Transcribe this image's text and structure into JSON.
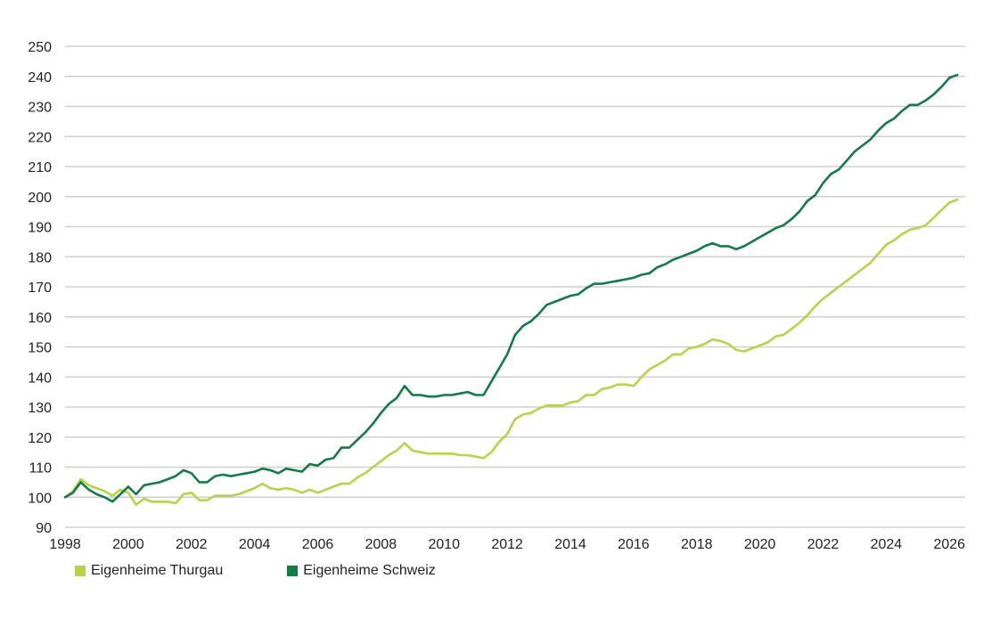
{
  "chart_data": {
    "type": "line",
    "title": "",
    "xlabel": "",
    "ylabel": "",
    "xlim": [
      1998,
      2026.5
    ],
    "ylim": [
      90,
      250
    ],
    "x_ticks": [
      "1998",
      "2000",
      "2002",
      "2004",
      "2006",
      "2008",
      "2010",
      "2012",
      "2014",
      "2016",
      "2018",
      "2020",
      "2022",
      "2024",
      "2026"
    ],
    "y_ticks": [
      "90",
      "100",
      "110",
      "120",
      "130",
      "140",
      "150",
      "160",
      "170",
      "180",
      "190",
      "200",
      "210",
      "220",
      "230",
      "240",
      "250"
    ],
    "grid": "horizontal",
    "legend": "bottom-left",
    "series": [
      {
        "name": "Eigenheime Thurgau",
        "color": "#b5d34b",
        "points": [
          [
            1998.0,
            100
          ],
          [
            1998.25,
            102
          ],
          [
            1998.5,
            106
          ],
          [
            1998.75,
            104
          ],
          [
            1999.0,
            103
          ],
          [
            1999.25,
            102
          ],
          [
            1999.5,
            100.5
          ],
          [
            1999.75,
            102.5
          ],
          [
            2000.0,
            101.5
          ],
          [
            2000.25,
            97.5
          ],
          [
            2000.5,
            99.5
          ],
          [
            2000.75,
            98.5
          ],
          [
            2001.0,
            98.5
          ],
          [
            2001.25,
            98.5
          ],
          [
            2001.5,
            98
          ],
          [
            2001.75,
            101
          ],
          [
            2002.0,
            101.5
          ],
          [
            2002.25,
            99
          ],
          [
            2002.5,
            99
          ],
          [
            2002.75,
            100.5
          ],
          [
            2003.0,
            100.5
          ],
          [
            2003.25,
            100.5
          ],
          [
            2003.5,
            101
          ],
          [
            2003.75,
            102
          ],
          [
            2004.0,
            103
          ],
          [
            2004.25,
            104.5
          ],
          [
            2004.5,
            103
          ],
          [
            2004.75,
            102.5
          ],
          [
            2005.0,
            103
          ],
          [
            2005.25,
            102.5
          ],
          [
            2005.5,
            101.5
          ],
          [
            2005.75,
            102.5
          ],
          [
            2006.0,
            101.5
          ],
          [
            2006.25,
            102.5
          ],
          [
            2006.5,
            103.5
          ],
          [
            2006.75,
            104.5
          ],
          [
            2007.0,
            104.5
          ],
          [
            2007.25,
            106.5
          ],
          [
            2007.5,
            108
          ],
          [
            2007.75,
            110
          ],
          [
            2008.0,
            112
          ],
          [
            2008.25,
            114
          ],
          [
            2008.5,
            115.5
          ],
          [
            2008.75,
            118
          ],
          [
            2009.0,
            115.5
          ],
          [
            2009.25,
            115
          ],
          [
            2009.5,
            114.5
          ],
          [
            2009.75,
            114.5
          ],
          [
            2010.0,
            114.5
          ],
          [
            2010.25,
            114.5
          ],
          [
            2010.5,
            114
          ],
          [
            2010.75,
            114
          ],
          [
            2011.0,
            113.5
          ],
          [
            2011.25,
            113
          ],
          [
            2011.5,
            115
          ],
          [
            2011.75,
            118.5
          ],
          [
            2012.0,
            121
          ],
          [
            2012.25,
            126
          ],
          [
            2012.5,
            127.5
          ],
          [
            2012.75,
            128
          ],
          [
            2013.0,
            129.5
          ],
          [
            2013.25,
            130.5
          ],
          [
            2013.5,
            130.5
          ],
          [
            2013.75,
            130.5
          ],
          [
            2014.0,
            131.5
          ],
          [
            2014.25,
            132
          ],
          [
            2014.5,
            134
          ],
          [
            2014.75,
            134
          ],
          [
            2015.0,
            136
          ],
          [
            2015.25,
            136.5
          ],
          [
            2015.5,
            137.5
          ],
          [
            2015.75,
            137.5
          ],
          [
            2016.0,
            137
          ],
          [
            2016.25,
            140
          ],
          [
            2016.5,
            142.5
          ],
          [
            2016.75,
            144
          ],
          [
            2017.0,
            145.5
          ],
          [
            2017.25,
            147.5
          ],
          [
            2017.5,
            147.5
          ],
          [
            2017.75,
            149.5
          ],
          [
            2018.0,
            150
          ],
          [
            2018.25,
            151
          ],
          [
            2018.5,
            152.5
          ],
          [
            2018.75,
            152
          ],
          [
            2019.0,
            151
          ],
          [
            2019.25,
            149
          ],
          [
            2019.5,
            148.5
          ],
          [
            2019.75,
            149.5
          ],
          [
            2020.0,
            150.5
          ],
          [
            2020.25,
            151.5
          ],
          [
            2020.5,
            153.5
          ],
          [
            2020.75,
            154
          ],
          [
            2021.0,
            156
          ],
          [
            2021.25,
            158
          ],
          [
            2021.5,
            160.5
          ],
          [
            2021.75,
            163.5
          ],
          [
            2022.0,
            166
          ],
          [
            2022.25,
            168
          ],
          [
            2022.5,
            170
          ],
          [
            2022.75,
            172
          ],
          [
            2023.0,
            174
          ],
          [
            2023.25,
            176
          ],
          [
            2023.5,
            178
          ],
          [
            2023.75,
            181
          ],
          [
            2024.0,
            184
          ],
          [
            2024.25,
            185.5
          ],
          [
            2024.5,
            187.5
          ],
          [
            2024.75,
            189
          ],
          [
            2025.0,
            189.5
          ],
          [
            2025.25,
            190.5
          ],
          [
            2025.5,
            193
          ],
          [
            2025.75,
            195.5
          ],
          [
            2026.0,
            198
          ],
          [
            2026.25,
            199
          ]
        ]
      },
      {
        "name": "Eigenheime Schweiz",
        "color": "#137a48",
        "points": [
          [
            1998.0,
            100
          ],
          [
            1998.25,
            101.5
          ],
          [
            1998.5,
            105
          ],
          [
            1998.75,
            102.5
          ],
          [
            1999.0,
            101
          ],
          [
            1999.25,
            100
          ],
          [
            1999.5,
            98.5
          ],
          [
            1999.75,
            101
          ],
          [
            2000.0,
            103.5
          ],
          [
            2000.25,
            101
          ],
          [
            2000.5,
            104
          ],
          [
            2000.75,
            104.5
          ],
          [
            2001.0,
            105
          ],
          [
            2001.25,
            106
          ],
          [
            2001.5,
            107
          ],
          [
            2001.75,
            109
          ],
          [
            2002.0,
            108
          ],
          [
            2002.25,
            105
          ],
          [
            2002.5,
            105
          ],
          [
            2002.75,
            107
          ],
          [
            2003.0,
            107.5
          ],
          [
            2003.25,
            107
          ],
          [
            2003.5,
            107.5
          ],
          [
            2003.75,
            108
          ],
          [
            2004.0,
            108.5
          ],
          [
            2004.25,
            109.5
          ],
          [
            2004.5,
            109
          ],
          [
            2004.75,
            108
          ],
          [
            2005.0,
            109.5
          ],
          [
            2005.25,
            109
          ],
          [
            2005.5,
            108.5
          ],
          [
            2005.75,
            111
          ],
          [
            2006.0,
            110.5
          ],
          [
            2006.25,
            112.5
          ],
          [
            2006.5,
            113
          ],
          [
            2006.75,
            116.5
          ],
          [
            2007.0,
            116.5
          ],
          [
            2007.25,
            119
          ],
          [
            2007.5,
            121.5
          ],
          [
            2007.75,
            124.5
          ],
          [
            2008.0,
            128
          ],
          [
            2008.25,
            131
          ],
          [
            2008.5,
            133
          ],
          [
            2008.75,
            137
          ],
          [
            2009.0,
            134
          ],
          [
            2009.25,
            134
          ],
          [
            2009.5,
            133.5
          ],
          [
            2009.75,
            133.5
          ],
          [
            2010.0,
            134
          ],
          [
            2010.25,
            134
          ],
          [
            2010.5,
            134.5
          ],
          [
            2010.75,
            135
          ],
          [
            2011.0,
            134
          ],
          [
            2011.25,
            134
          ],
          [
            2011.5,
            138.5
          ],
          [
            2011.75,
            143
          ],
          [
            2012.0,
            147.5
          ],
          [
            2012.25,
            154
          ],
          [
            2012.5,
            157
          ],
          [
            2012.75,
            158.5
          ],
          [
            2013.0,
            161
          ],
          [
            2013.25,
            164
          ],
          [
            2013.5,
            165
          ],
          [
            2013.75,
            166
          ],
          [
            2014.0,
            167
          ],
          [
            2014.25,
            167.5
          ],
          [
            2014.5,
            169.5
          ],
          [
            2014.75,
            171
          ],
          [
            2015.0,
            171
          ],
          [
            2015.25,
            171.5
          ],
          [
            2015.5,
            172
          ],
          [
            2015.75,
            172.5
          ],
          [
            2016.0,
            173
          ],
          [
            2016.25,
            174
          ],
          [
            2016.5,
            174.5
          ],
          [
            2016.75,
            176.5
          ],
          [
            2017.0,
            177.5
          ],
          [
            2017.25,
            179
          ],
          [
            2017.5,
            180
          ],
          [
            2017.75,
            181
          ],
          [
            2018.0,
            182
          ],
          [
            2018.25,
            183.5
          ],
          [
            2018.5,
            184.5
          ],
          [
            2018.75,
            183.5
          ],
          [
            2019.0,
            183.5
          ],
          [
            2019.25,
            182.5
          ],
          [
            2019.5,
            183.5
          ],
          [
            2019.75,
            185
          ],
          [
            2020.0,
            186.5
          ],
          [
            2020.25,
            188
          ],
          [
            2020.5,
            189.5
          ],
          [
            2020.75,
            190.5
          ],
          [
            2021.0,
            192.5
          ],
          [
            2021.25,
            195
          ],
          [
            2021.5,
            198.5
          ],
          [
            2021.75,
            200.5
          ],
          [
            2022.0,
            204.5
          ],
          [
            2022.25,
            207.5
          ],
          [
            2022.5,
            209
          ],
          [
            2022.75,
            212
          ],
          [
            2023.0,
            215
          ],
          [
            2023.25,
            217
          ],
          [
            2023.5,
            219
          ],
          [
            2023.75,
            222
          ],
          [
            2024.0,
            224.5
          ],
          [
            2024.25,
            226
          ],
          [
            2024.5,
            228.5
          ],
          [
            2024.75,
            230.5
          ],
          [
            2025.0,
            230.5
          ],
          [
            2025.25,
            232
          ],
          [
            2025.5,
            234
          ],
          [
            2025.75,
            236.5
          ],
          [
            2026.0,
            239.5
          ],
          [
            2026.25,
            240.5
          ]
        ]
      }
    ]
  }
}
